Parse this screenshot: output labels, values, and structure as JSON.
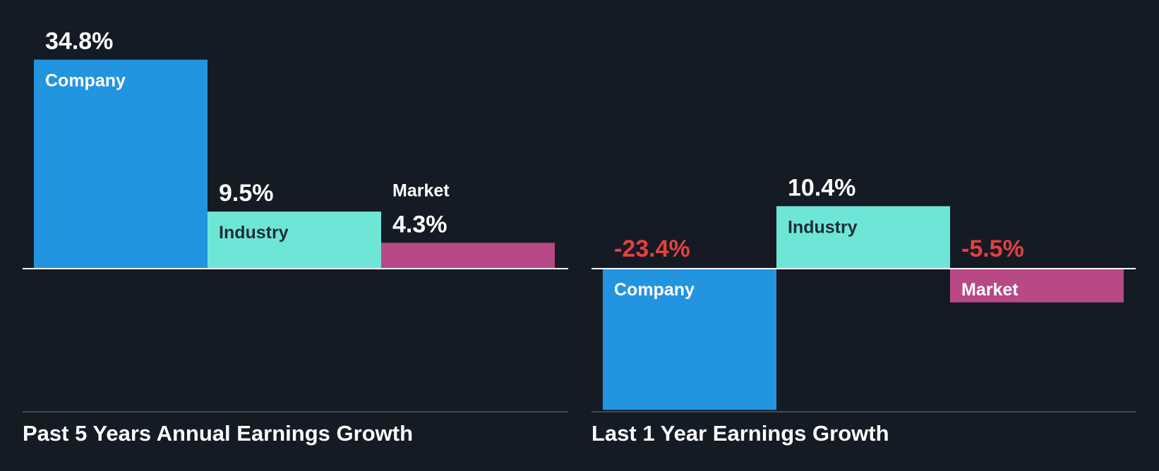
{
  "colors": {
    "background": "#151b24",
    "company": "#2394e0",
    "industry": "#6ee6d6",
    "market": "#b84886",
    "positive_text": "#ffffff",
    "negative_text": "#e5403f",
    "inside_label_dark": "#1f2d3a",
    "axis": "#ffffff",
    "baseline": "#434a54"
  },
  "chart_data": [
    {
      "type": "bar",
      "title": "Past 5 Years Annual Earnings Growth",
      "categories": [
        "Company",
        "Industry",
        "Market"
      ],
      "values": [
        34.8,
        9.5,
        4.3
      ],
      "value_labels": [
        "34.8%",
        "9.5%",
        "4.3%"
      ],
      "unit": "%"
    },
    {
      "type": "bar",
      "title": "Last 1 Year Earnings Growth",
      "categories": [
        "Company",
        "Industry",
        "Market"
      ],
      "values": [
        -23.4,
        10.4,
        -5.5
      ],
      "value_labels": [
        "-23.4%",
        "10.4%",
        "-5.5%"
      ],
      "unit": "%"
    }
  ]
}
